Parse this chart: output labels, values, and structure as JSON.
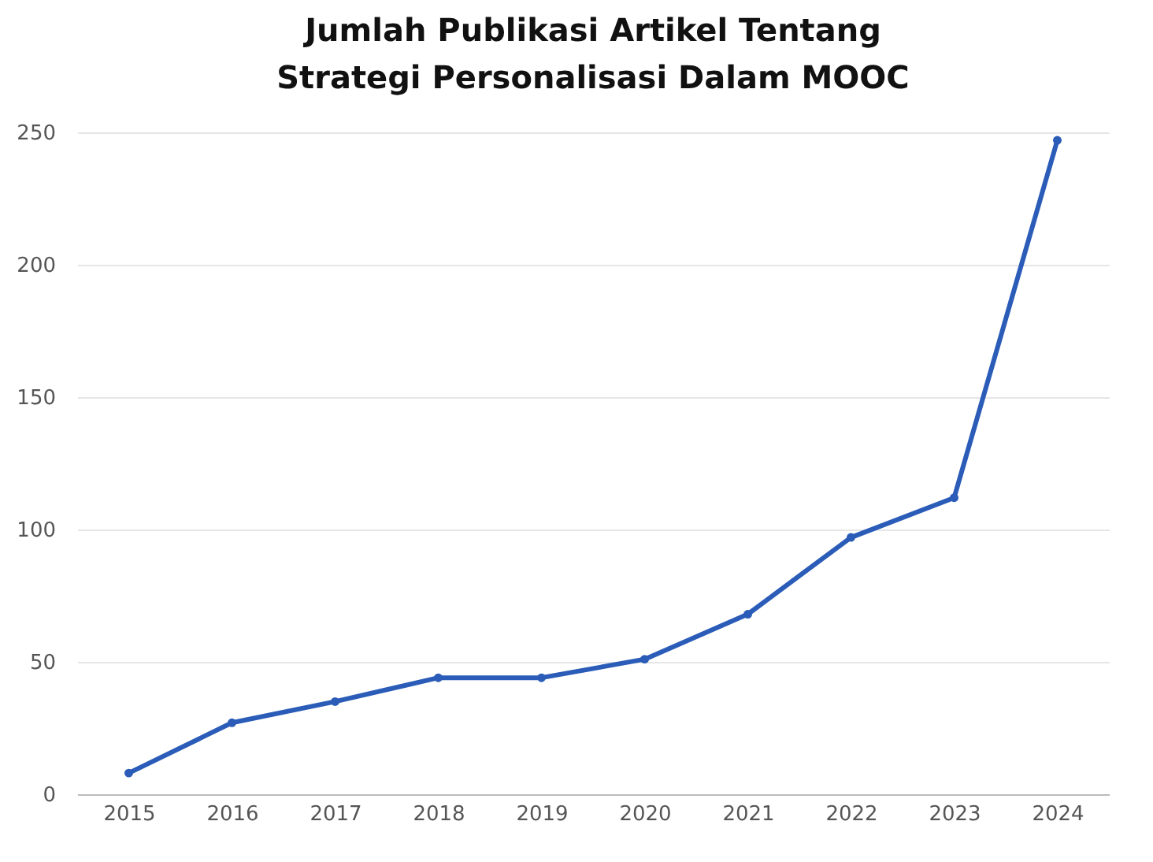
{
  "chart_data": {
    "type": "line",
    "title": "Jumlah Publikasi  Artikel Tentang Strategi Personalisasi Dalam MOOC",
    "categories": [
      "2015",
      "2016",
      "2017",
      "2018",
      "2019",
      "2020",
      "2021",
      "2022",
      "2023",
      "2024"
    ],
    "series": [
      {
        "color": "#2a5cb8",
        "values": [
          8,
          27,
          35,
          44,
          44,
          51,
          68,
          97,
          112,
          247
        ]
      }
    ],
    "ylim": [
      0,
      250
    ],
    "yticks": [
      0,
      50,
      100,
      150,
      200,
      250
    ],
    "grid": "y",
    "marker": "circle",
    "line_style": "solid"
  }
}
